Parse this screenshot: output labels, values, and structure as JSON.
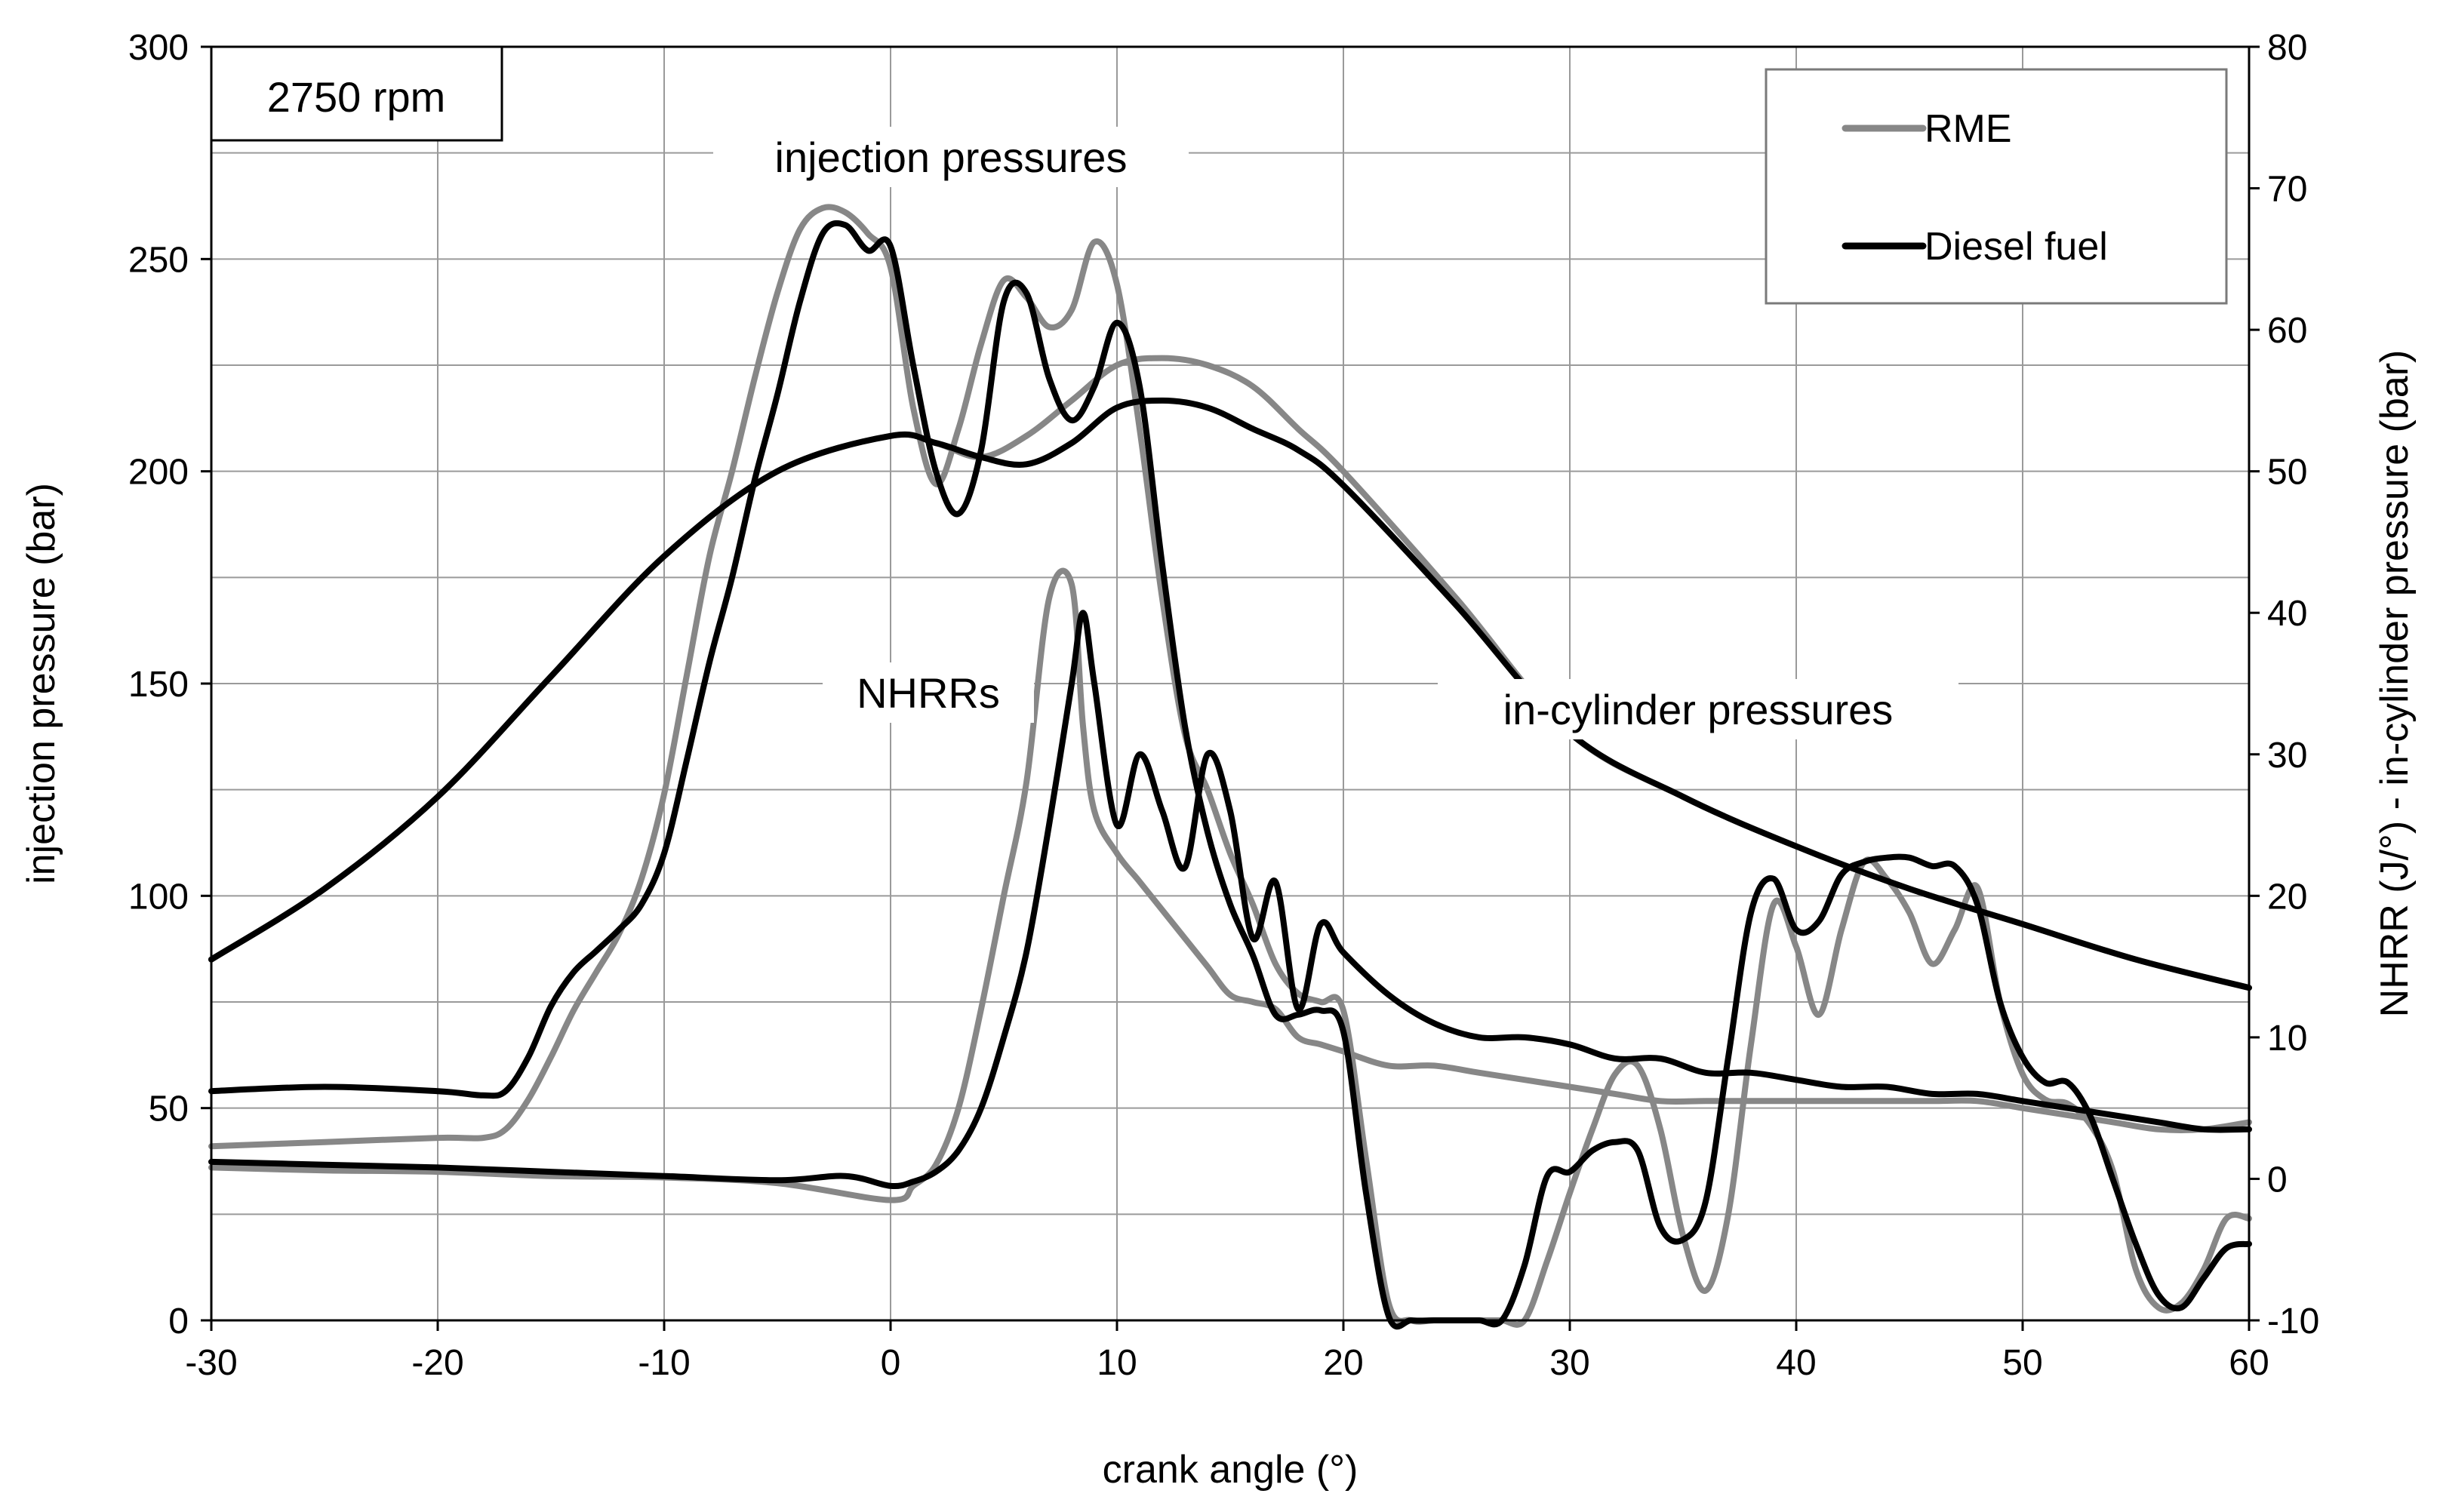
{
  "chart_data": {
    "type": "line",
    "title": "",
    "xlabel": "crank angle (°)",
    "ylabel_left": "injection pressure (bar)",
    "ylabel_right": "NHRR (J/°) - in-cylinder pressure (bar)",
    "xlim": [
      -30,
      60
    ],
    "ylim_left": [
      0,
      300
    ],
    "ylim_right": [
      -10,
      80
    ],
    "x_ticks": [
      "-30",
      "-20",
      "-10",
      "0",
      "10",
      "20",
      "30",
      "40",
      "50",
      "60"
    ],
    "y_left_ticks": [
      "0",
      "50",
      "100",
      "150",
      "200",
      "250",
      "300"
    ],
    "y_right_ticks": [
      "-10",
      "0",
      "10",
      "20",
      "30",
      "40",
      "50",
      "60",
      "70",
      "80"
    ],
    "grid": true,
    "annotations": {
      "speed": "2750 rpm",
      "injection": "injection pressures",
      "nhrr": "NHRRs",
      "cylinder": "in-cylinder pressures"
    },
    "legend": {
      "position": "top-right",
      "entries": [
        {
          "label": "RME",
          "color": "#878787"
        },
        {
          "label": "Diesel fuel",
          "color": "#000000"
        }
      ]
    },
    "series": [
      {
        "name": "RME injection pressure",
        "legend": "RME",
        "color": "#878787",
        "axis": "left",
        "x": [
          -30,
          -25,
          -20,
          -18,
          -17,
          -16,
          -15,
          -14,
          -13,
          -12,
          -11,
          -10,
          -9,
          -8,
          -7,
          -6,
          -5,
          -4,
          -3,
          -2,
          -1,
          0,
          1,
          2,
          3,
          4,
          5,
          6,
          7,
          8,
          9,
          10,
          11,
          12,
          13,
          14,
          15,
          16,
          17,
          18,
          19,
          20,
          21,
          22,
          23,
          24,
          25,
          26,
          27,
          28,
          29,
          30,
          31,
          32,
          33,
          34,
          35,
          36,
          37,
          38,
          39,
          40,
          41,
          42,
          43,
          44,
          45,
          46,
          47,
          48,
          49,
          50,
          51,
          52,
          53,
          54,
          55,
          56,
          57,
          58,
          59,
          60
        ],
        "y": [
          41,
          42,
          43,
          43,
          45,
          52,
          62,
          73,
          82,
          91,
          104,
          124,
          152,
          180,
          200,
          222,
          242,
          257,
          262,
          261,
          256,
          248,
          215,
          197,
          210,
          230,
          245,
          241,
          234,
          238,
          254,
          244,
          210,
          170,
          138,
          125,
          110,
          98,
          84,
          77,
          75,
          73,
          38,
          4,
          0,
          0,
          0,
          0,
          0,
          0,
          14,
          30,
          45,
          58,
          60,
          45,
          20,
          7,
          25,
          65,
          98,
          88,
          72,
          92,
          108,
          104,
          96,
          84,
          92,
          102,
          75,
          58,
          52,
          51,
          46,
          35,
          12,
          3,
          4,
          12,
          24,
          24
        ]
      },
      {
        "name": "Diesel fuel injection pressure",
        "legend": "Diesel fuel",
        "color": "#000000",
        "axis": "left",
        "x": [
          -30,
          -25,
          -20,
          -18,
          -17,
          -16,
          -15,
          -14,
          -13,
          -12,
          -11,
          -10,
          -9,
          -8,
          -7,
          -6,
          -5,
          -4,
          -3,
          -2,
          -1,
          0,
          1,
          2,
          3,
          4,
          5,
          6,
          7,
          8,
          9,
          10,
          11,
          12,
          13,
          14,
          15,
          16,
          17,
          18,
          19,
          20,
          21,
          22,
          23,
          24,
          25,
          26,
          27,
          28,
          29,
          30,
          31,
          32,
          33,
          34,
          35,
          36,
          37,
          38,
          39,
          40,
          41,
          42,
          43,
          44,
          45,
          46,
          47,
          48,
          49,
          50,
          51,
          52,
          53,
          54,
          55,
          56,
          57,
          58,
          59,
          60
        ],
        "y": [
          54,
          55,
          54,
          53,
          54,
          62,
          74,
          82,
          87,
          92,
          98,
          110,
          132,
          155,
          175,
          198,
          218,
          240,
          256,
          258,
          252,
          253,
          225,
          200,
          190,
          205,
          240,
          242,
          222,
          212,
          220,
          235,
          220,
          178,
          140,
          115,
          98,
          86,
          72,
          72,
          73,
          68,
          30,
          1,
          0,
          0,
          0,
          0,
          0,
          13,
          34,
          35,
          40,
          42,
          40,
          22,
          19,
          28,
          62,
          96,
          104,
          92,
          94,
          105,
          108,
          109,
          109,
          107,
          107,
          98,
          75,
          62,
          56,
          56,
          48,
          33,
          18,
          6,
          3,
          10,
          17,
          18
        ]
      },
      {
        "name": "RME NHRR",
        "legend": "RME",
        "color": "#878787",
        "axis": "right",
        "x": [
          -30,
          -25,
          -20,
          -15,
          -10,
          -5,
          0,
          1,
          2,
          3,
          4,
          5,
          6,
          7,
          8,
          8.5,
          9,
          10,
          11,
          12,
          13,
          14,
          15,
          16,
          17,
          18,
          19,
          20,
          22,
          24,
          26,
          28,
          30,
          32,
          34,
          36,
          38,
          40,
          42,
          44,
          46,
          48,
          50,
          52,
          54,
          56,
          58,
          60
        ],
        "y": [
          0.8,
          0.6,
          0.5,
          0.2,
          0.1,
          -0.3,
          -1.5,
          -0.5,
          1,
          5,
          12,
          20,
          28,
          41,
          42,
          32,
          26,
          23,
          21,
          19,
          17,
          15,
          13,
          12.5,
          12,
          10,
          9.5,
          9,
          8,
          8,
          7.5,
          7,
          6.5,
          6,
          5.5,
          5.5,
          5.5,
          5.5,
          5.5,
          5.5,
          5.5,
          5.5,
          5,
          4.5,
          4,
          3.5,
          3.5,
          4
        ]
      },
      {
        "name": "Diesel fuel NHRR",
        "legend": "Diesel fuel",
        "color": "#000000",
        "axis": "right",
        "x": [
          -30,
          -25,
          -20,
          -15,
          -10,
          -5,
          -2,
          0,
          1,
          2,
          3,
          4,
          5,
          6,
          7,
          8,
          8.5,
          9,
          10,
          11,
          12,
          13,
          14,
          15,
          16,
          17,
          18,
          19,
          20,
          22,
          24,
          26,
          28,
          30,
          32,
          34,
          36,
          38,
          40,
          42,
          44,
          46,
          48,
          50,
          52,
          54,
          56,
          58,
          60
        ],
        "y": [
          1.2,
          1.0,
          0.8,
          0.5,
          0.2,
          -0.1,
          0.2,
          -0.5,
          -0.2,
          0.5,
          2,
          5,
          10,
          16,
          25,
          35,
          40,
          35,
          25,
          30,
          26,
          22,
          30,
          26,
          17,
          21,
          12,
          18,
          16,
          13,
          11,
          10,
          10,
          9.5,
          8.5,
          8.5,
          7.5,
          7.5,
          7,
          6.5,
          6.5,
          6,
          6,
          5.5,
          5,
          4.5,
          4,
          3.5,
          3.5
        ]
      },
      {
        "name": "RME in-cylinder pressure",
        "legend": "RME",
        "color": "#878787",
        "axis": "right",
        "x": [
          -30,
          -25,
          -20,
          -15,
          -10,
          -5,
          0,
          2,
          4,
          6,
          8,
          10,
          12,
          14,
          16,
          18,
          20,
          25,
          30,
          35,
          40,
          45,
          50,
          55,
          60
        ],
        "y": [
          15.5,
          20.5,
          27,
          35.5,
          44,
          50,
          52.5,
          52,
          51,
          52.5,
          55,
          57.5,
          58,
          57.5,
          56,
          53,
          50,
          41,
          31.5,
          27,
          23.5,
          20.5,
          18,
          15.5,
          13.5
        ]
      },
      {
        "name": "Diesel fuel in-cylinder pressure",
        "legend": "Diesel fuel",
        "color": "#000000",
        "axis": "right",
        "x": [
          -30,
          -25,
          -20,
          -15,
          -10,
          -5,
          0,
          2,
          4,
          6,
          8,
          10,
          12,
          14,
          16,
          18,
          20,
          25,
          30,
          35,
          40,
          45,
          50,
          55,
          60
        ],
        "y": [
          15.5,
          20.5,
          27,
          35.5,
          44,
          50,
          52.5,
          52,
          51,
          50.5,
          52,
          54.5,
          55,
          54.5,
          53,
          51.5,
          49,
          40.5,
          31.5,
          27,
          23.5,
          20.5,
          18,
          15.5,
          13.5
        ]
      }
    ]
  }
}
